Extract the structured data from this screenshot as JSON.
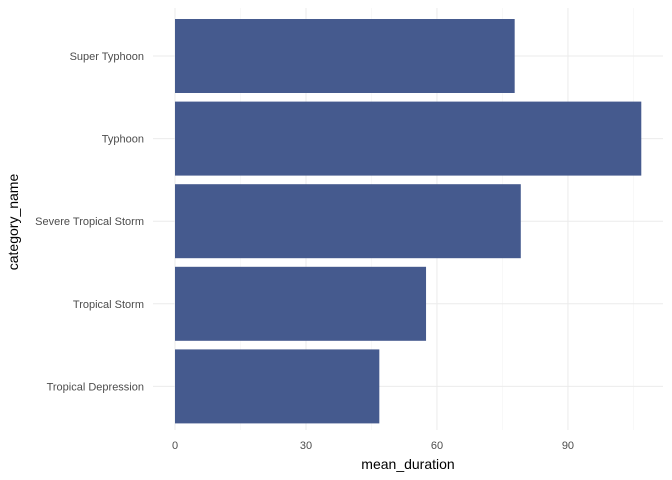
{
  "chart_data": {
    "type": "bar",
    "orientation": "horizontal",
    "categories": [
      "Tropical Depression",
      "Tropical Storm",
      "Severe Tropical Storm",
      "Typhoon",
      "Super Typhoon"
    ],
    "values": [
      46.8,
      57.5,
      79.2,
      106.8,
      77.8
    ],
    "xlabel": "mean_duration",
    "ylabel": "category_name",
    "xlim": [
      0,
      112
    ],
    "x_ticks": [
      0,
      30,
      60,
      90
    ],
    "x_tick_labels": [
      "0",
      "30",
      "60",
      "90"
    ],
    "grid": true,
    "bar_color": "#455A8E"
  }
}
